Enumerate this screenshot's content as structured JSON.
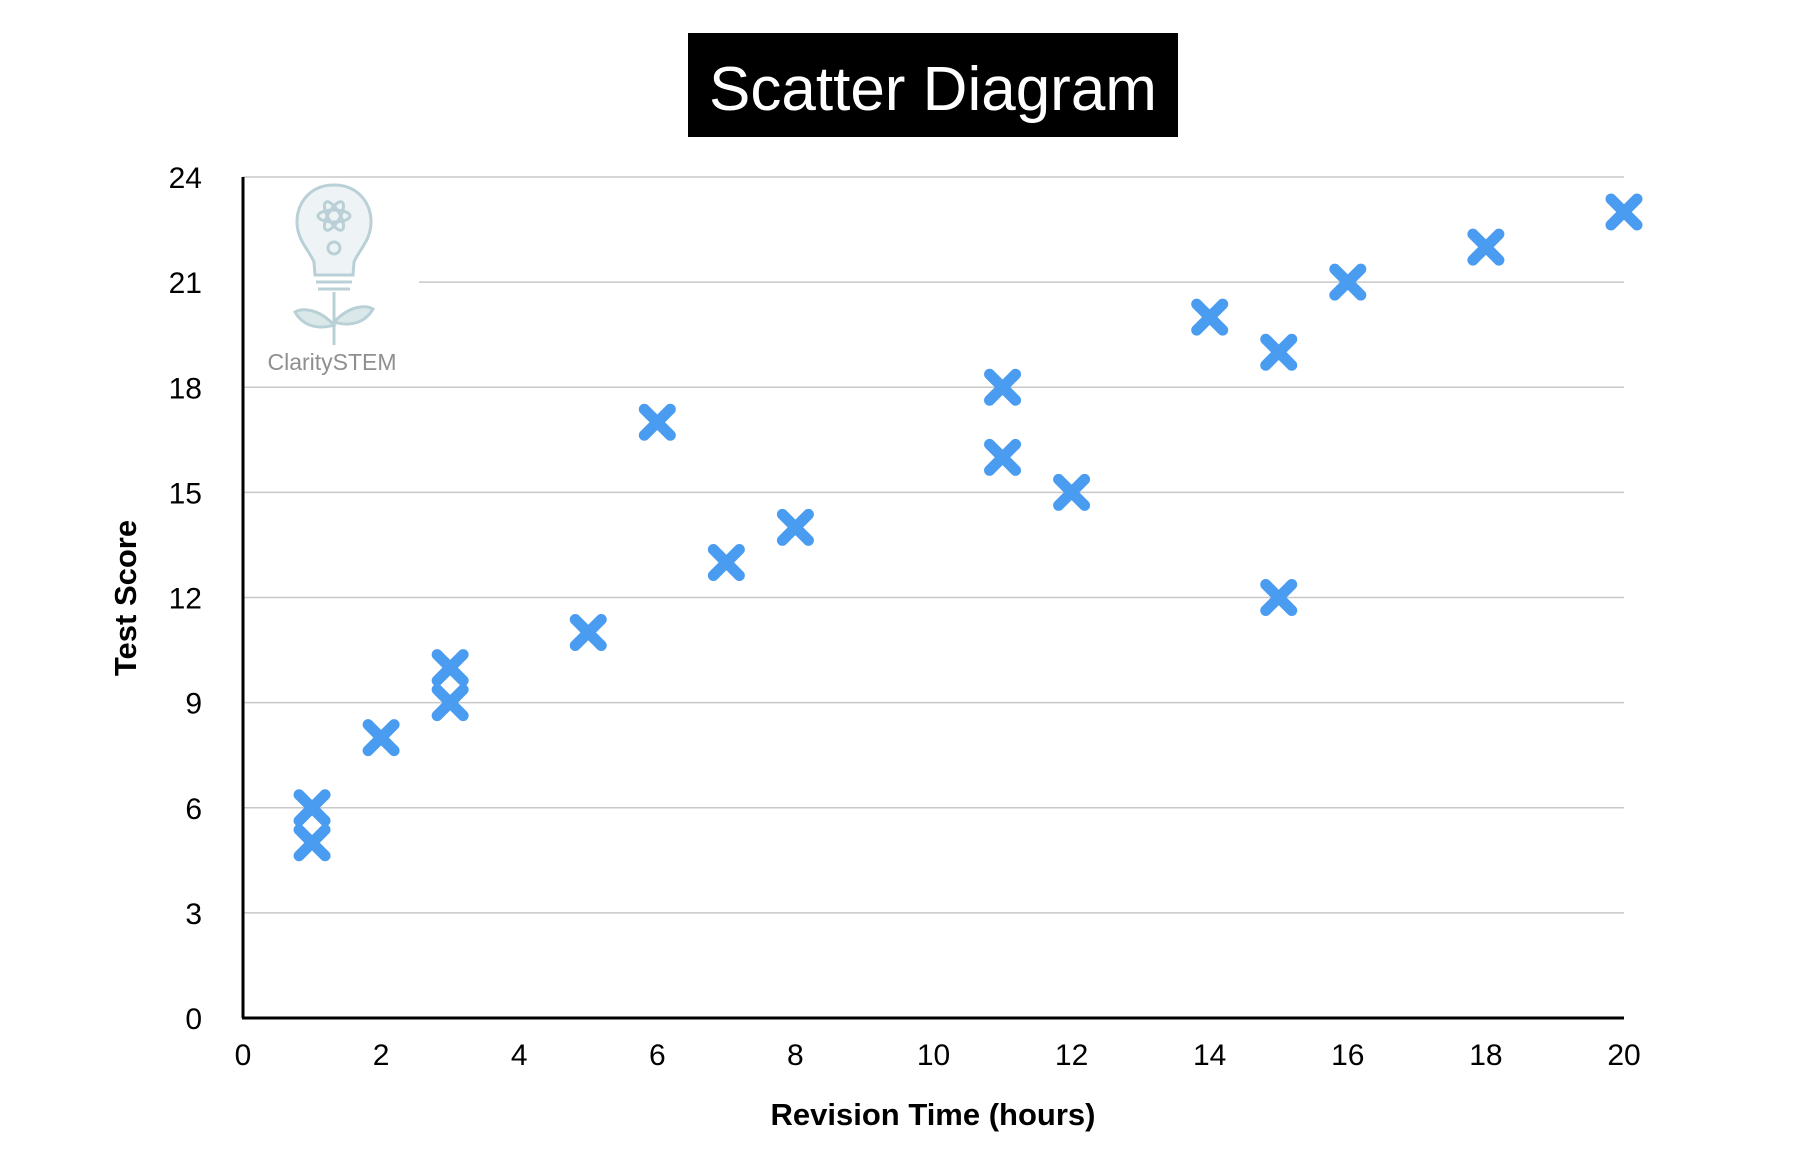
{
  "chart_data": {
    "type": "scatter",
    "title": "Scatter Diagram",
    "xlabel": "Revision Time (hours)",
    "ylabel": "Test Score",
    "xlim": [
      0,
      20
    ],
    "ylim": [
      0,
      24
    ],
    "xticks": [
      0,
      2,
      4,
      6,
      8,
      10,
      12,
      14,
      16,
      18,
      20
    ],
    "yticks": [
      0,
      3,
      6,
      9,
      12,
      15,
      18,
      21,
      24
    ],
    "grid": "horizontal",
    "marker": "x",
    "marker_color": "#4a9cf0",
    "points": [
      {
        "x": 1,
        "y": 5
      },
      {
        "x": 1,
        "y": 6
      },
      {
        "x": 2,
        "y": 8
      },
      {
        "x": 3,
        "y": 9
      },
      {
        "x": 3,
        "y": 10
      },
      {
        "x": 5,
        "y": 11
      },
      {
        "x": 6,
        "y": 17
      },
      {
        "x": 7,
        "y": 13
      },
      {
        "x": 8,
        "y": 14
      },
      {
        "x": 11,
        "y": 16
      },
      {
        "x": 11,
        "y": 18
      },
      {
        "x": 12,
        "y": 15
      },
      {
        "x": 14,
        "y": 20
      },
      {
        "x": 15,
        "y": 19
      },
      {
        "x": 15,
        "y": 12
      },
      {
        "x": 16,
        "y": 21
      },
      {
        "x": 18,
        "y": 22
      },
      {
        "x": 20,
        "y": 23
      }
    ]
  },
  "logo": {
    "text": "ClaritySTEM",
    "icon": "lightbulb-plant-icon"
  },
  "colors": {
    "title_background": "#000000",
    "title_text": "#ffffff",
    "gridline": "#c8c8c8",
    "axis": "#000000"
  }
}
